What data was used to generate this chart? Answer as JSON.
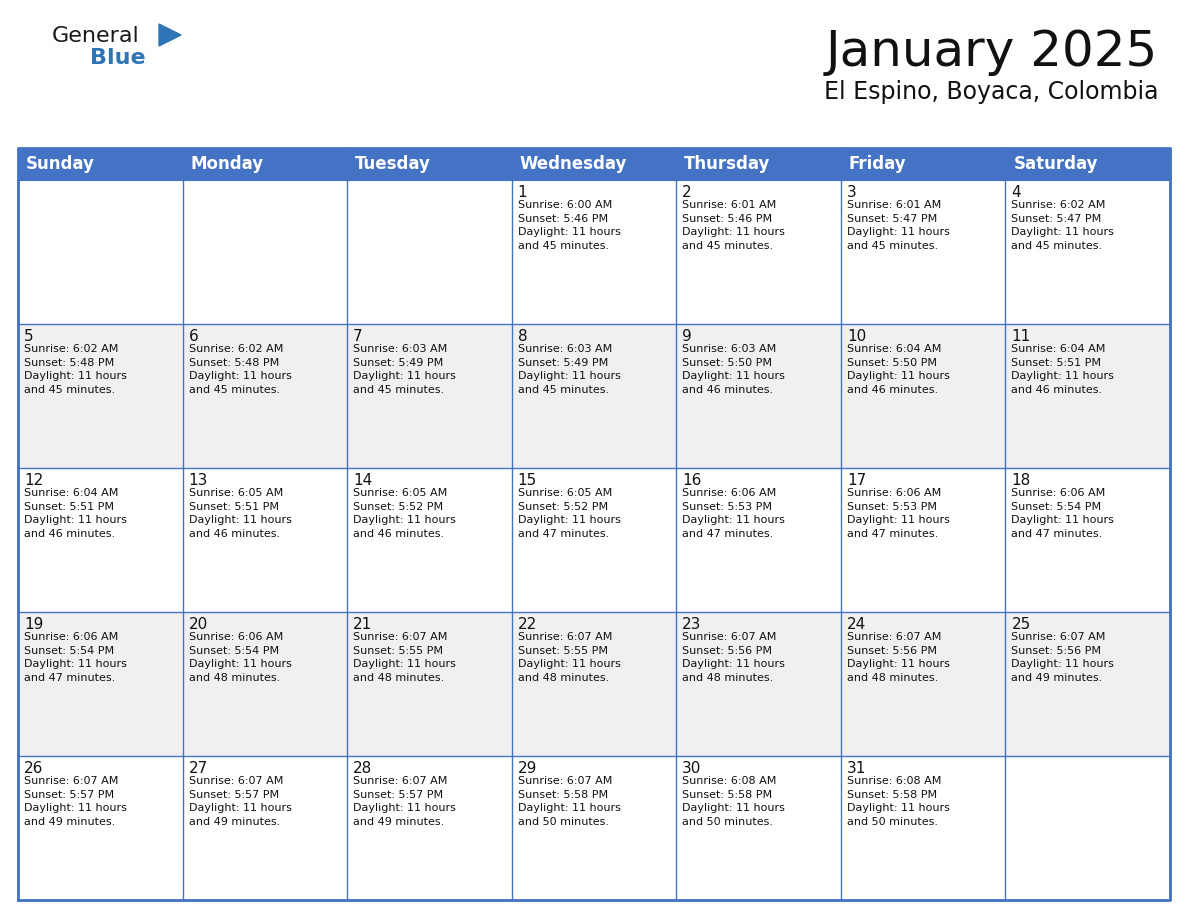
{
  "title": "January 2025",
  "subtitle": "El Espino, Boyaca, Colombia",
  "header_bg_color": "#4472C4",
  "header_text_color": "#FFFFFF",
  "cell_bg_white": "#FFFFFF",
  "cell_bg_gray": "#F0F0F0",
  "grid_line_color": "#4472C4",
  "grid_line_color_inner": "#9DB5E0",
  "day_headers": [
    "Sunday",
    "Monday",
    "Tuesday",
    "Wednesday",
    "Thursday",
    "Friday",
    "Saturday"
  ],
  "title_fontsize": 36,
  "subtitle_fontsize": 17,
  "header_fontsize": 12,
  "cell_num_fontsize": 11,
  "cell_text_fontsize": 8,
  "logo_text1": "General",
  "logo_text2": "Blue",
  "logo_color1": "#1a1a1a",
  "logo_color2": "#2E75B6",
  "logo_triangle_color": "#2E75B6",
  "weeks": [
    [
      {
        "day": null,
        "data": null
      },
      {
        "day": null,
        "data": null
      },
      {
        "day": null,
        "data": null
      },
      {
        "day": 1,
        "data": {
          "sunrise": "6:00 AM",
          "sunset": "5:46 PM",
          "daylight": "11 hours",
          "daylight2": "and 45 minutes."
        }
      },
      {
        "day": 2,
        "data": {
          "sunrise": "6:01 AM",
          "sunset": "5:46 PM",
          "daylight": "11 hours",
          "daylight2": "and 45 minutes."
        }
      },
      {
        "day": 3,
        "data": {
          "sunrise": "6:01 AM",
          "sunset": "5:47 PM",
          "daylight": "11 hours",
          "daylight2": "and 45 minutes."
        }
      },
      {
        "day": 4,
        "data": {
          "sunrise": "6:02 AM",
          "sunset": "5:47 PM",
          "daylight": "11 hours",
          "daylight2": "and 45 minutes."
        }
      }
    ],
    [
      {
        "day": 5,
        "data": {
          "sunrise": "6:02 AM",
          "sunset": "5:48 PM",
          "daylight": "11 hours",
          "daylight2": "and 45 minutes."
        }
      },
      {
        "day": 6,
        "data": {
          "sunrise": "6:02 AM",
          "sunset": "5:48 PM",
          "daylight": "11 hours",
          "daylight2": "and 45 minutes."
        }
      },
      {
        "day": 7,
        "data": {
          "sunrise": "6:03 AM",
          "sunset": "5:49 PM",
          "daylight": "11 hours",
          "daylight2": "and 45 minutes."
        }
      },
      {
        "day": 8,
        "data": {
          "sunrise": "6:03 AM",
          "sunset": "5:49 PM",
          "daylight": "11 hours",
          "daylight2": "and 45 minutes."
        }
      },
      {
        "day": 9,
        "data": {
          "sunrise": "6:03 AM",
          "sunset": "5:50 PM",
          "daylight": "11 hours",
          "daylight2": "and 46 minutes."
        }
      },
      {
        "day": 10,
        "data": {
          "sunrise": "6:04 AM",
          "sunset": "5:50 PM",
          "daylight": "11 hours",
          "daylight2": "and 46 minutes."
        }
      },
      {
        "day": 11,
        "data": {
          "sunrise": "6:04 AM",
          "sunset": "5:51 PM",
          "daylight": "11 hours",
          "daylight2": "and 46 minutes."
        }
      }
    ],
    [
      {
        "day": 12,
        "data": {
          "sunrise": "6:04 AM",
          "sunset": "5:51 PM",
          "daylight": "11 hours",
          "daylight2": "and 46 minutes."
        }
      },
      {
        "day": 13,
        "data": {
          "sunrise": "6:05 AM",
          "sunset": "5:51 PM",
          "daylight": "11 hours",
          "daylight2": "and 46 minutes."
        }
      },
      {
        "day": 14,
        "data": {
          "sunrise": "6:05 AM",
          "sunset": "5:52 PM",
          "daylight": "11 hours",
          "daylight2": "and 46 minutes."
        }
      },
      {
        "day": 15,
        "data": {
          "sunrise": "6:05 AM",
          "sunset": "5:52 PM",
          "daylight": "11 hours",
          "daylight2": "and 47 minutes."
        }
      },
      {
        "day": 16,
        "data": {
          "sunrise": "6:06 AM",
          "sunset": "5:53 PM",
          "daylight": "11 hours",
          "daylight2": "and 47 minutes."
        }
      },
      {
        "day": 17,
        "data": {
          "sunrise": "6:06 AM",
          "sunset": "5:53 PM",
          "daylight": "11 hours",
          "daylight2": "and 47 minutes."
        }
      },
      {
        "day": 18,
        "data": {
          "sunrise": "6:06 AM",
          "sunset": "5:54 PM",
          "daylight": "11 hours",
          "daylight2": "and 47 minutes."
        }
      }
    ],
    [
      {
        "day": 19,
        "data": {
          "sunrise": "6:06 AM",
          "sunset": "5:54 PM",
          "daylight": "11 hours",
          "daylight2": "and 47 minutes."
        }
      },
      {
        "day": 20,
        "data": {
          "sunrise": "6:06 AM",
          "sunset": "5:54 PM",
          "daylight": "11 hours",
          "daylight2": "and 48 minutes."
        }
      },
      {
        "day": 21,
        "data": {
          "sunrise": "6:07 AM",
          "sunset": "5:55 PM",
          "daylight": "11 hours",
          "daylight2": "and 48 minutes."
        }
      },
      {
        "day": 22,
        "data": {
          "sunrise": "6:07 AM",
          "sunset": "5:55 PM",
          "daylight": "11 hours",
          "daylight2": "and 48 minutes."
        }
      },
      {
        "day": 23,
        "data": {
          "sunrise": "6:07 AM",
          "sunset": "5:56 PM",
          "daylight": "11 hours",
          "daylight2": "and 48 minutes."
        }
      },
      {
        "day": 24,
        "data": {
          "sunrise": "6:07 AM",
          "sunset": "5:56 PM",
          "daylight": "11 hours",
          "daylight2": "and 48 minutes."
        }
      },
      {
        "day": 25,
        "data": {
          "sunrise": "6:07 AM",
          "sunset": "5:56 PM",
          "daylight": "11 hours",
          "daylight2": "and 49 minutes."
        }
      }
    ],
    [
      {
        "day": 26,
        "data": {
          "sunrise": "6:07 AM",
          "sunset": "5:57 PM",
          "daylight": "11 hours",
          "daylight2": "and 49 minutes."
        }
      },
      {
        "day": 27,
        "data": {
          "sunrise": "6:07 AM",
          "sunset": "5:57 PM",
          "daylight": "11 hours",
          "daylight2": "and 49 minutes."
        }
      },
      {
        "day": 28,
        "data": {
          "sunrise": "6:07 AM",
          "sunset": "5:57 PM",
          "daylight": "11 hours",
          "daylight2": "and 49 minutes."
        }
      },
      {
        "day": 29,
        "data": {
          "sunrise": "6:07 AM",
          "sunset": "5:58 PM",
          "daylight": "11 hours",
          "daylight2": "and 50 minutes."
        }
      },
      {
        "day": 30,
        "data": {
          "sunrise": "6:08 AM",
          "sunset": "5:58 PM",
          "daylight": "11 hours",
          "daylight2": "and 50 minutes."
        }
      },
      {
        "day": 31,
        "data": {
          "sunrise": "6:08 AM",
          "sunset": "5:58 PM",
          "daylight": "11 hours",
          "daylight2": "and 50 minutes."
        }
      },
      {
        "day": null,
        "data": null
      }
    ]
  ]
}
